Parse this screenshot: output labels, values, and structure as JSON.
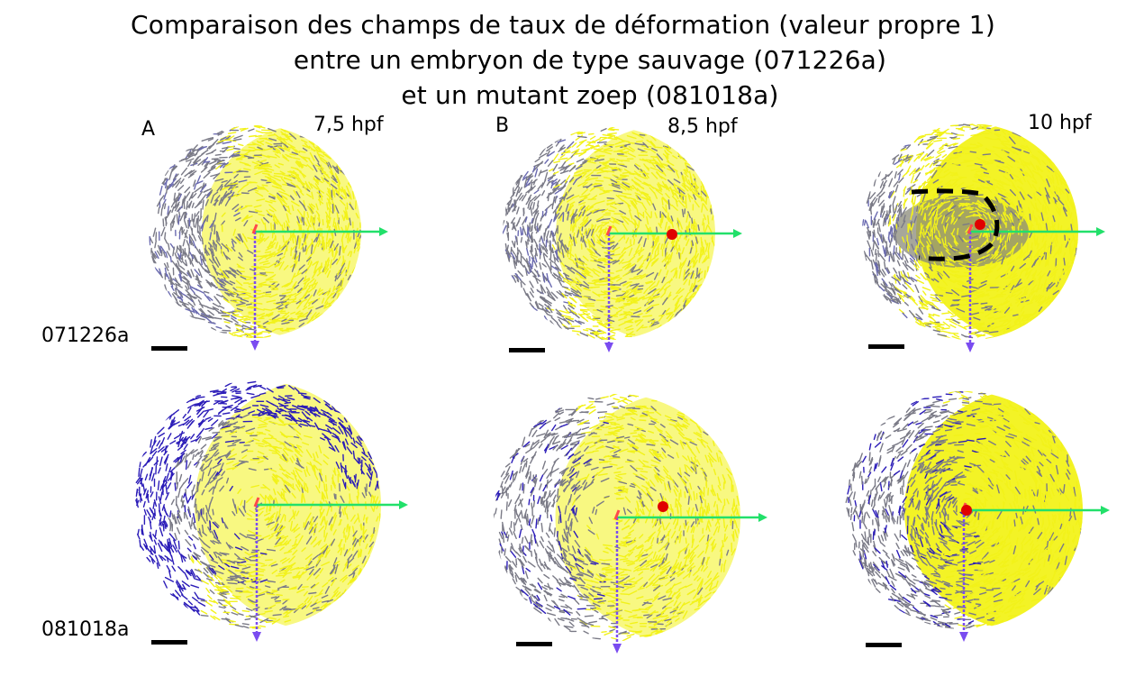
{
  "title": {
    "line1": "Comparaison des champs de  taux de déformation (valeur propre 1)",
    "line2": "entre un embryon de type sauvage (071226a)",
    "line3": "et un mutant zoep (081018a)"
  },
  "panel_letters": [
    "A",
    "B"
  ],
  "time_labels": [
    "7,5 hpf",
    "8,5 hpf",
    "10 hpf"
  ],
  "embryo_labels": [
    "071226a",
    "081018a"
  ],
  "colors": {
    "yellow": "#f2f21a",
    "gray": "#7a7a86",
    "blue": "#2b1cb8",
    "green_arrow": "#22e06a",
    "violet_arrow": "#7a4cf0",
    "red_dot": "#e00000",
    "dashed_outline": "#000000"
  }
}
